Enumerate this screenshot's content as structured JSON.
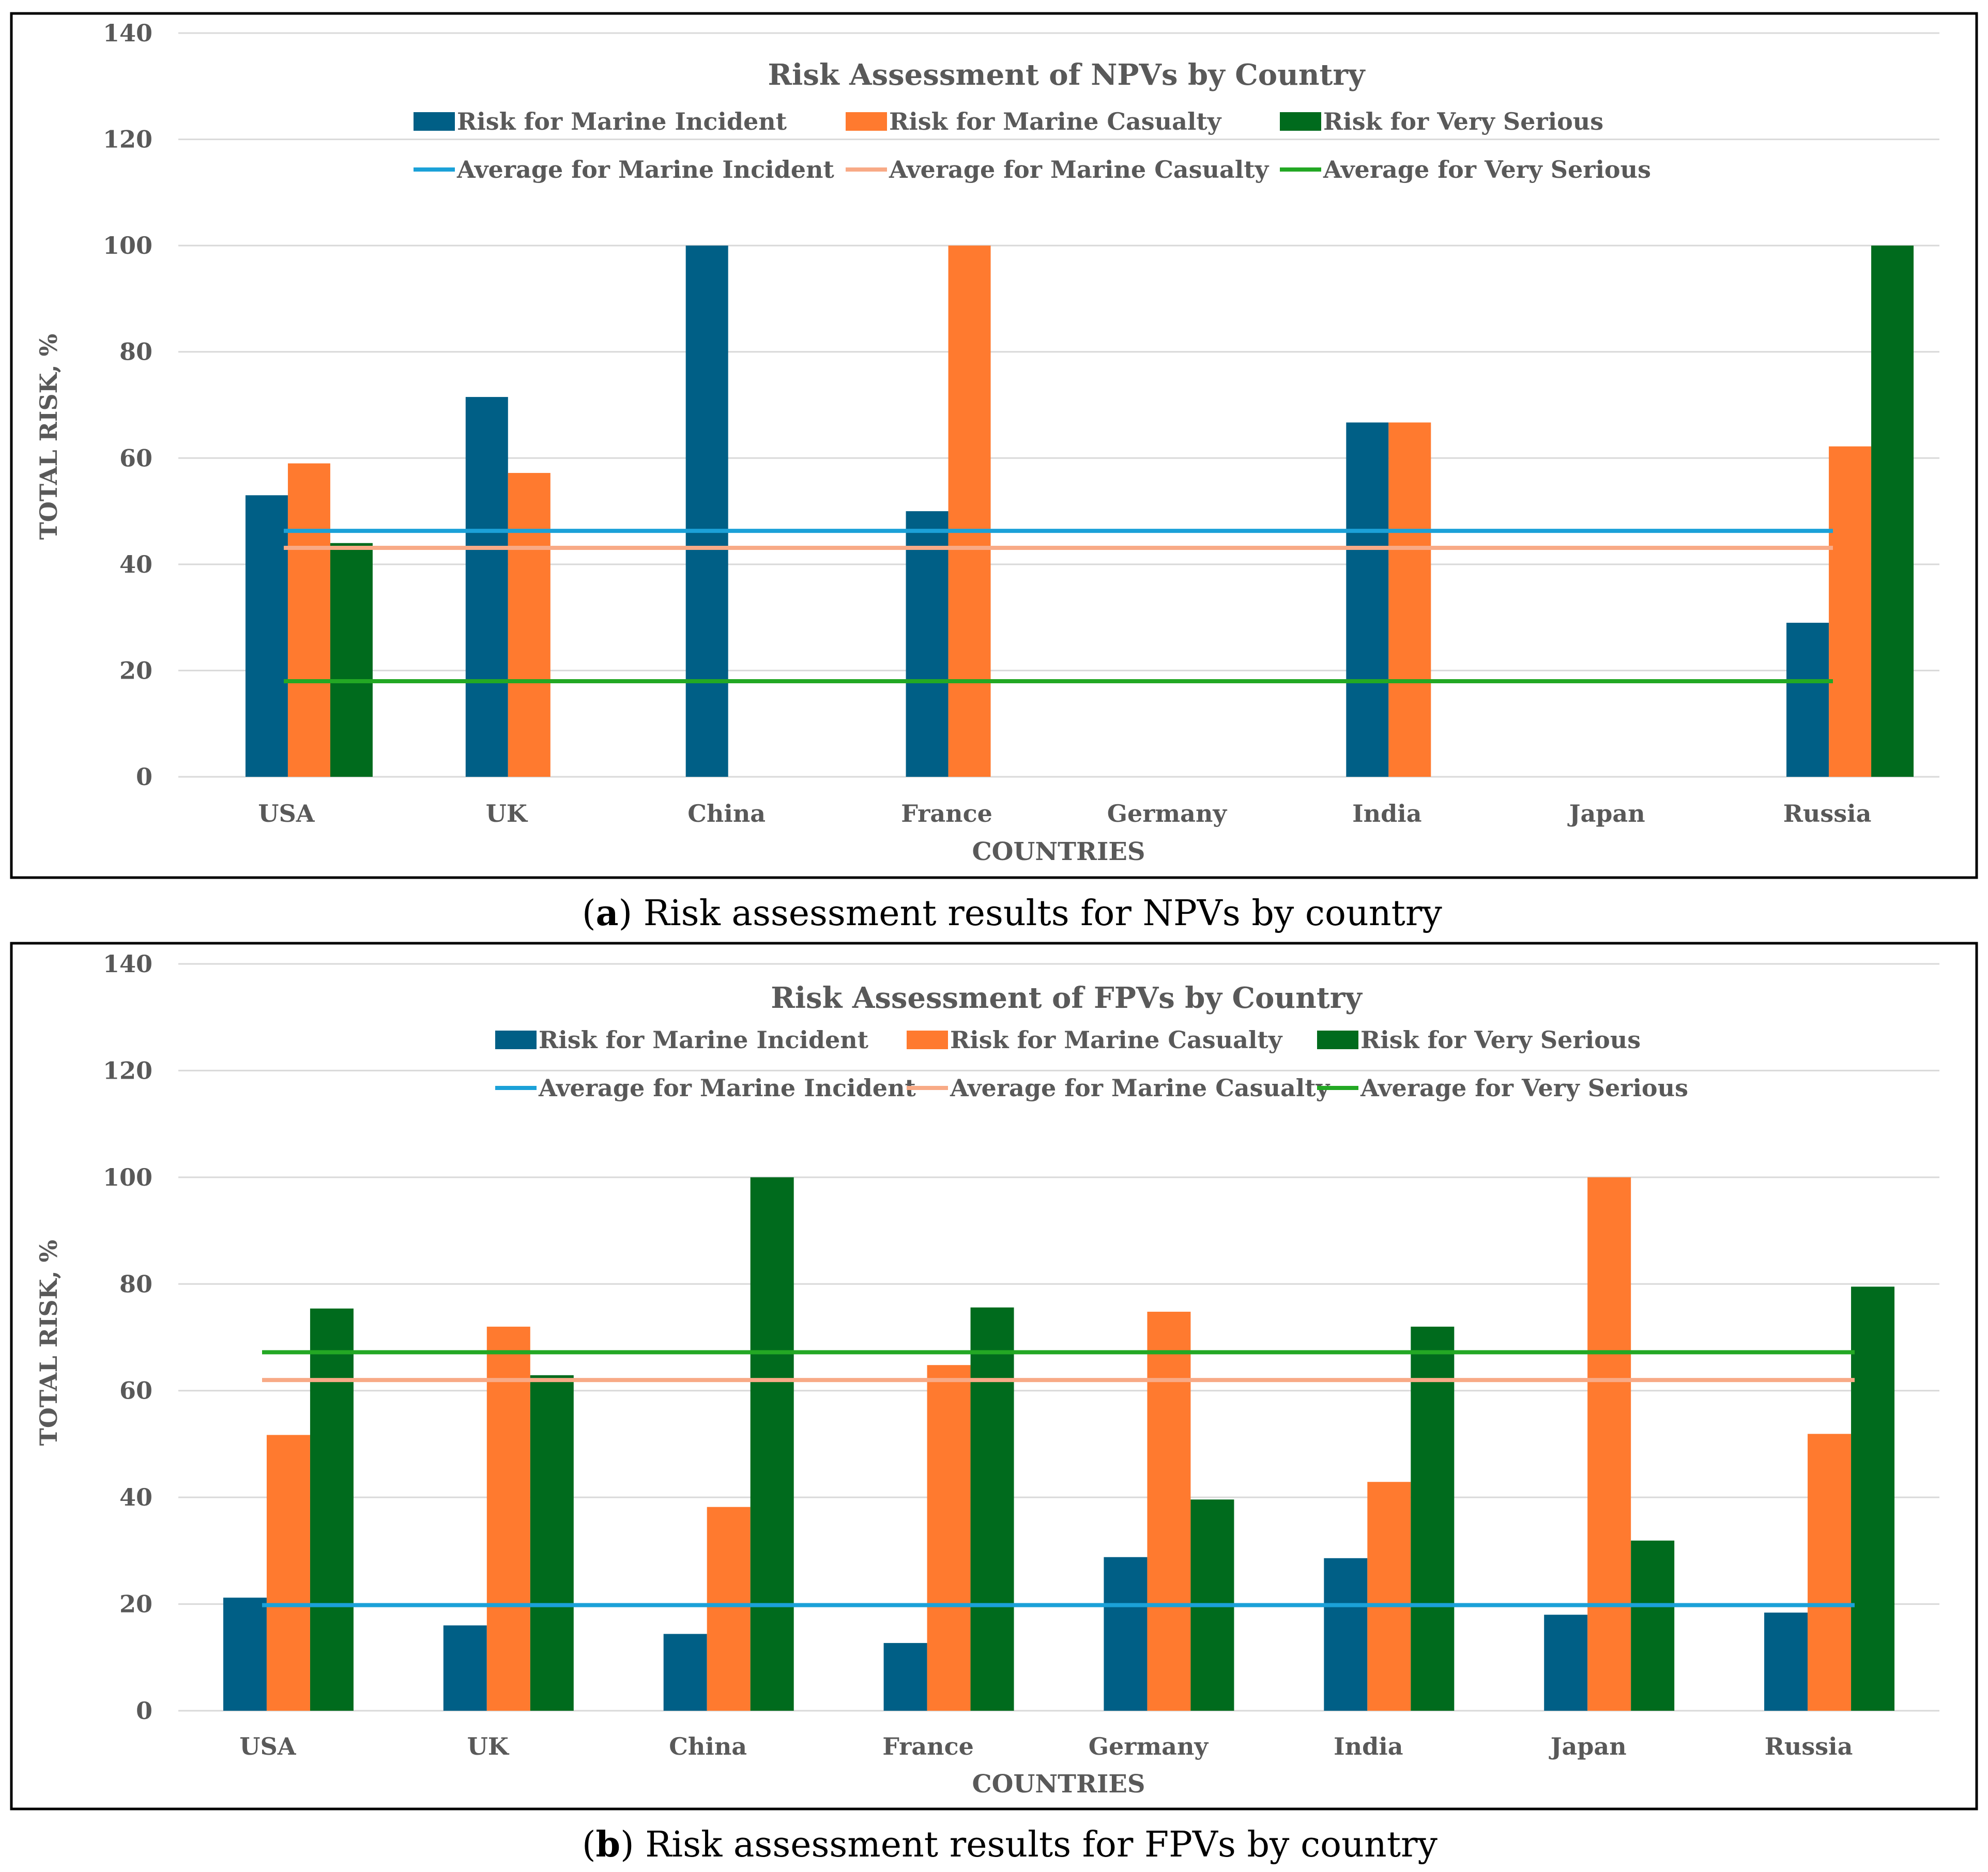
{
  "colors": {
    "incident": "#005F86",
    "casualty": "#FF7A2F",
    "very_serious": "#006B1D",
    "avg_incident": "#1BA1D8",
    "avg_casualty": "#F8AA86",
    "avg_very_serious": "#23A824",
    "grid": "#D9D9D9",
    "frame": "#000000"
  },
  "chart_data": [
    {
      "type": "bar",
      "title": "Risk Assessment of NPVs by Country",
      "xlabel": "COUNTRIES",
      "ylabel": "TOTAL RISK, %",
      "ylim": [
        0,
        140
      ],
      "yticks": [
        0,
        20,
        40,
        60,
        80,
        100,
        120,
        140
      ],
      "grid": true,
      "legend_position": "top",
      "categories": [
        "USA",
        "UK",
        "China",
        "France",
        "Germany",
        "India",
        "Japan",
        "Russia"
      ],
      "series": [
        {
          "name": "Risk for Marine Incident",
          "color_key": "incident",
          "values": [
            53,
            71.5,
            100,
            50,
            0,
            66.7,
            0,
            29
          ]
        },
        {
          "name": "Risk for Marine Casualty",
          "color_key": "casualty",
          "values": [
            59,
            57.2,
            0,
            100,
            0,
            66.7,
            0,
            62.2
          ]
        },
        {
          "name": "Risk for Very Serious",
          "color_key": "very_serious",
          "values": [
            44,
            0,
            0,
            0,
            0,
            0,
            0,
            100
          ]
        }
      ],
      "averages": [
        {
          "name": "Average for Marine Incident",
          "color_key": "avg_incident",
          "value": 46.3
        },
        {
          "name": "Average for Marine Casualty",
          "color_key": "avg_casualty",
          "value": 43.1
        },
        {
          "name": "Average for Very Serious",
          "color_key": "avg_very_serious",
          "value": 18
        }
      ],
      "caption_label": "a",
      "caption_text": ") Risk assessment results for NPVs by country"
    },
    {
      "type": "bar",
      "title": "Risk Assessment of FPVs by Country",
      "xlabel": "COUNTRIES",
      "ylabel": "TOTAL RISK, %",
      "ylim": [
        0,
        140
      ],
      "yticks": [
        0,
        20,
        40,
        60,
        80,
        100,
        120,
        140
      ],
      "grid": true,
      "legend_position": "top",
      "categories": [
        "USA",
        "UK",
        "China",
        "France",
        "Germany",
        "India",
        "Japan",
        "Russia"
      ],
      "series": [
        {
          "name": "Risk for Marine Incident",
          "color_key": "incident",
          "values": [
            21.2,
            16,
            14.4,
            12.7,
            28.8,
            28.6,
            18,
            18.4
          ]
        },
        {
          "name": "Risk for Marine Casualty",
          "color_key": "casualty",
          "values": [
            51.7,
            72,
            38.2,
            64.8,
            74.8,
            42.9,
            100,
            51.9
          ]
        },
        {
          "name": "Risk for Very Serious",
          "color_key": "very_serious",
          "values": [
            75.4,
            62.9,
            100,
            75.6,
            39.6,
            72,
            31.9,
            79.5
          ]
        }
      ],
      "averages": [
        {
          "name": "Average for Marine Incident",
          "color_key": "avg_incident",
          "value": 19.8
        },
        {
          "name": "Average for Marine Casualty",
          "color_key": "avg_casualty",
          "value": 62
        },
        {
          "name": "Average for Very Serious",
          "color_key": "avg_very_serious",
          "value": 67.2
        }
      ],
      "caption_label": "b",
      "caption_text": ") Risk assessment results for FPVs by country"
    }
  ]
}
